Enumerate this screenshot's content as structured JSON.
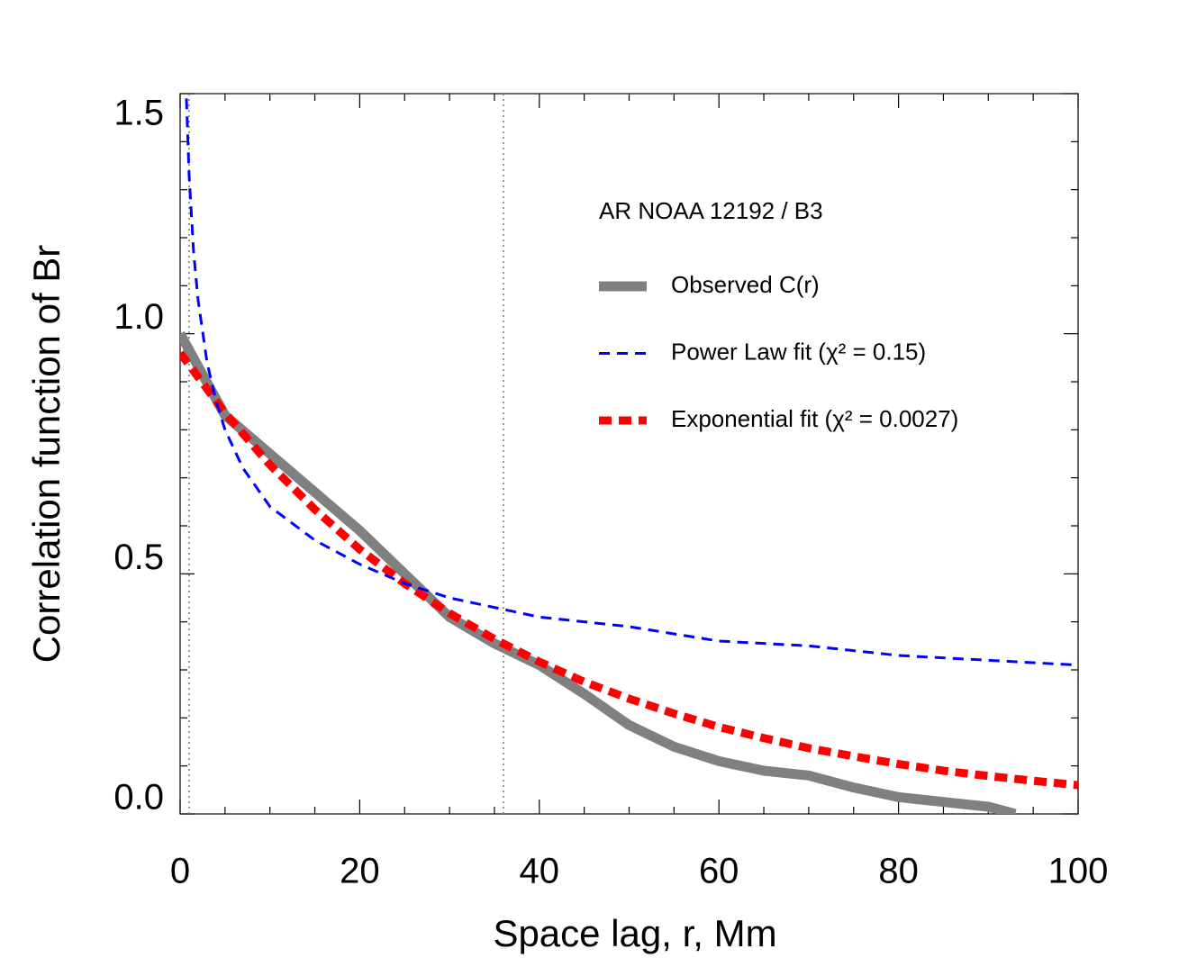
{
  "chart_data": {
    "type": "line",
    "xlabel": "Space lag, r, Mm",
    "ylabel": "Correlation function of Br",
    "legend_title": "AR NOAA 12192 / B3",
    "xlim": [
      0,
      100
    ],
    "ylim": [
      0,
      1.5
    ],
    "xticks": [
      0,
      20,
      40,
      60,
      80,
      100
    ],
    "yticks": [
      {
        "value": 0,
        "label": "0.0"
      },
      {
        "value": 0.5,
        "label": "0.5"
      },
      {
        "value": 1,
        "label": "1.0"
      },
      {
        "value": 1.5,
        "label": "1.5"
      }
    ],
    "xminorticks": [
      5,
      10,
      15,
      25,
      30,
      35,
      45,
      50,
      55,
      65,
      70,
      75,
      85,
      90,
      95
    ],
    "yminorticks": [
      0.1,
      0.2,
      0.3,
      0.4,
      0.6,
      0.7,
      0.8,
      0.9,
      1.1,
      1.2,
      1.3,
      1.4
    ],
    "vlines": [
      1,
      36
    ],
    "series": [
      {
        "name": "Observed C(r)",
        "color": "#808080",
        "width": 11,
        "dash": "none",
        "x": [
          0,
          5,
          10,
          15,
          20,
          25,
          30,
          35,
          40,
          45,
          50,
          55,
          60,
          65,
          70,
          75,
          80,
          85,
          90,
          93
        ],
        "values": [
          1.0,
          0.83,
          0.75,
          0.67,
          0.59,
          0.5,
          0.41,
          0.355,
          0.31,
          0.25,
          0.185,
          0.14,
          0.11,
          0.09,
          0.08,
          0.055,
          0.035,
          0.025,
          0.015,
          0.0
        ]
      },
      {
        "name": "Power Law fit (χ² = 0.15)",
        "color": "#0000ff",
        "width": 3,
        "dash": "12 8",
        "x": [
          0.7,
          1,
          1.5,
          2,
          3,
          4,
          5,
          7,
          10,
          15,
          20,
          25,
          30,
          40,
          50,
          60,
          70,
          80,
          90,
          100
        ],
        "values": [
          1.49,
          1.33,
          1.17,
          1.07,
          0.94,
          0.86,
          0.8,
          0.72,
          0.64,
          0.57,
          0.52,
          0.48,
          0.45,
          0.41,
          0.39,
          0.36,
          0.35,
          0.33,
          0.32,
          0.31
        ]
      },
      {
        "name": "Exponential fit (χ² = 0.0027)",
        "color": "#ff0000",
        "width": 9,
        "dash": "14 8",
        "x": [
          0,
          5,
          10,
          15,
          20,
          25,
          30,
          35,
          40,
          45,
          50,
          55,
          60,
          65,
          70,
          75,
          80,
          85,
          90,
          95,
          100
        ],
        "values": [
          0.96,
          0.835,
          0.727,
          0.634,
          0.551,
          0.48,
          0.418,
          0.364,
          0.317,
          0.275,
          0.24,
          0.209,
          0.181,
          0.158,
          0.137,
          0.12,
          0.104,
          0.09,
          0.079,
          0.069,
          0.06
        ]
      }
    ]
  }
}
